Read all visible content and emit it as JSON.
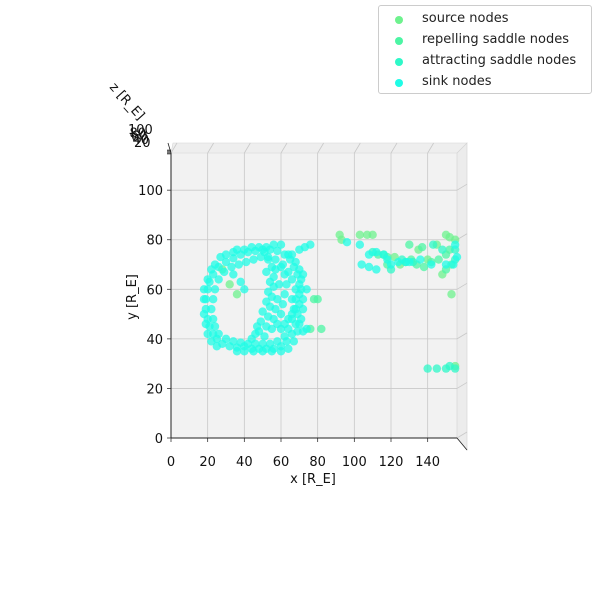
{
  "chart_data": {
    "type": "scatter",
    "projection": "3d-top-view",
    "title": "",
    "xlabel": "x [R_E]",
    "ylabel": "y [R_E]",
    "zlabel": "z [R_E]",
    "xlim": [
      0,
      156
    ],
    "ylim": [
      0,
      115
    ],
    "x_ticks": [
      "0",
      "20",
      "40",
      "60",
      "80",
      "100",
      "120",
      "140"
    ],
    "y_ticks": [
      "0",
      "20",
      "40",
      "60",
      "80",
      "100"
    ],
    "z_ticks": [
      "100",
      "80",
      "60",
      "40",
      "20"
    ],
    "grid": true,
    "legend_position": "top-right",
    "series": [
      {
        "name": "source nodes",
        "color": "#6ef28e",
        "points": [
          [
            92,
            82
          ],
          [
            93,
            80
          ],
          [
            103,
            82
          ],
          [
            107,
            82
          ],
          [
            110,
            82
          ],
          [
            150,
            82
          ],
          [
            152,
            81
          ],
          [
            155,
            80
          ],
          [
            153,
            58
          ],
          [
            122,
            73
          ],
          [
            125,
            70
          ],
          [
            135,
            76
          ],
          [
            140,
            72
          ],
          [
            145,
            78
          ],
          [
            148,
            66
          ],
          [
            28,
            68
          ],
          [
            32,
            62
          ],
          [
            36,
            58
          ],
          [
            155,
            29
          ]
        ]
      },
      {
        "name": "repelling saddle nodes",
        "color": "#4cf5a4",
        "points": [
          [
            113,
            74
          ],
          [
            116,
            74
          ],
          [
            118,
            73
          ],
          [
            128,
            71
          ],
          [
            131,
            72
          ],
          [
            134,
            70
          ],
          [
            138,
            69
          ],
          [
            142,
            71
          ],
          [
            146,
            72
          ],
          [
            150,
            74
          ],
          [
            152,
            76
          ],
          [
            130,
            78
          ],
          [
            137,
            77
          ],
          [
            150,
            68
          ],
          [
            153,
            70
          ],
          [
            118,
            70
          ],
          [
            80,
            56
          ],
          [
            76,
            44
          ],
          [
            78,
            56
          ],
          [
            82,
            44
          ]
        ]
      },
      {
        "name": "attracting saddle nodes",
        "color": "#2ef8c8",
        "points": [
          [
            120,
            68
          ],
          [
            126,
            72
          ],
          [
            132,
            71
          ],
          [
            143,
            78
          ],
          [
            148,
            76
          ],
          [
            155,
            72
          ],
          [
            155,
            76
          ],
          [
            140,
            28
          ],
          [
            145,
            28
          ],
          [
            150,
            28
          ],
          [
            155,
            28
          ],
          [
            152,
            29
          ],
          [
            110,
            75
          ]
        ]
      },
      {
        "name": "sink nodes",
        "color": "#1ffce6",
        "points": [
          [
            40,
            37
          ],
          [
            44,
            36
          ],
          [
            48,
            36
          ],
          [
            52,
            36
          ],
          [
            56,
            36
          ],
          [
            60,
            37
          ],
          [
            63,
            39
          ],
          [
            66,
            42
          ],
          [
            68,
            46
          ],
          [
            69,
            50
          ],
          [
            70,
            54
          ],
          [
            70,
            58
          ],
          [
            70,
            62
          ],
          [
            69,
            66
          ],
          [
            67,
            69
          ],
          [
            65,
            72
          ],
          [
            62,
            74
          ],
          [
            58,
            75.5
          ],
          [
            54,
            76
          ],
          [
            50,
            76
          ],
          [
            46,
            75.5
          ],
          [
            42,
            75
          ],
          [
            38,
            74
          ],
          [
            34,
            72.5
          ],
          [
            30,
            71
          ],
          [
            26,
            69
          ],
          [
            23,
            66
          ],
          [
            21,
            63
          ],
          [
            20,
            60
          ],
          [
            19,
            56
          ],
          [
            19,
            52
          ],
          [
            20,
            48
          ],
          [
            21,
            45
          ],
          [
            23,
            42
          ],
          [
            25,
            40
          ],
          [
            28,
            38
          ],
          [
            32,
            37
          ],
          [
            36,
            36.5
          ],
          [
            42,
            38
          ],
          [
            46,
            38
          ],
          [
            50,
            38
          ],
          [
            54,
            38
          ],
          [
            58,
            39
          ],
          [
            62,
            41
          ],
          [
            64,
            44
          ],
          [
            66,
            48
          ],
          [
            67,
            52
          ],
          [
            68,
            56
          ],
          [
            68,
            60
          ],
          [
            66,
            64
          ],
          [
            64,
            67
          ],
          [
            61,
            70
          ],
          [
            57,
            72
          ],
          [
            53,
            73
          ],
          [
            49,
            73
          ],
          [
            45,
            72
          ],
          [
            41,
            71
          ],
          [
            37,
            70
          ],
          [
            33,
            69
          ],
          [
            29,
            67
          ],
          [
            26,
            64
          ],
          [
            24,
            60
          ],
          [
            23,
            56
          ],
          [
            22,
            52
          ],
          [
            23,
            48
          ],
          [
            24,
            45
          ],
          [
            26,
            42
          ],
          [
            30,
            40
          ],
          [
            34,
            39
          ],
          [
            38,
            38.5
          ],
          [
            51,
            41
          ],
          [
            52,
            45
          ],
          [
            53,
            49
          ],
          [
            54,
            53
          ],
          [
            55,
            57
          ],
          [
            56,
            61
          ],
          [
            56,
            65
          ],
          [
            55,
            69
          ],
          [
            53,
            72
          ],
          [
            51,
            75
          ],
          [
            48,
            43
          ],
          [
            49,
            47
          ],
          [
            50,
            51
          ],
          [
            52,
            55
          ],
          [
            53,
            59
          ],
          [
            54,
            63
          ],
          [
            52,
            67
          ],
          [
            58,
            46
          ],
          [
            60,
            50
          ],
          [
            61,
            54
          ],
          [
            62,
            58
          ],
          [
            63,
            62
          ],
          [
            62,
            66
          ],
          [
            60,
            69
          ],
          [
            57,
            68
          ],
          [
            59,
            62
          ],
          [
            58,
            56
          ],
          [
            57,
            52
          ],
          [
            56,
            48
          ],
          [
            55,
            44
          ],
          [
            44,
            40
          ],
          [
            46,
            42
          ],
          [
            47,
            45
          ],
          [
            66,
            56
          ],
          [
            70,
            46
          ],
          [
            72,
            43
          ],
          [
            74,
            44
          ],
          [
            76,
            78
          ],
          [
            73,
            77
          ],
          [
            70,
            76
          ],
          [
            72,
            66
          ],
          [
            74,
            60
          ],
          [
            64,
            74
          ],
          [
            60,
            78
          ],
          [
            56,
            78
          ],
          [
            52,
            77
          ],
          [
            48,
            77
          ],
          [
            44,
            77
          ],
          [
            40,
            76
          ],
          [
            36,
            76
          ],
          [
            34,
            75
          ],
          [
            30,
            74
          ],
          [
            27,
            73
          ],
          [
            24,
            70
          ],
          [
            22,
            68
          ],
          [
            20,
            64
          ],
          [
            18,
            60
          ],
          [
            18,
            56
          ],
          [
            18,
            50
          ],
          [
            19,
            46
          ],
          [
            20,
            42
          ],
          [
            22,
            39
          ],
          [
            25,
            37
          ],
          [
            36,
            35
          ],
          [
            40,
            35
          ],
          [
            45,
            35
          ],
          [
            50,
            35
          ],
          [
            55,
            35
          ],
          [
            60,
            35
          ],
          [
            64,
            36
          ],
          [
            67,
            39
          ],
          [
            69,
            43
          ],
          [
            71,
            48
          ],
          [
            72,
            52
          ],
          [
            72,
            56
          ],
          [
            71,
            60
          ],
          [
            71,
            64
          ],
          [
            70,
            68
          ],
          [
            68,
            71
          ],
          [
            66,
            74
          ],
          [
            38,
            63
          ],
          [
            40,
            60
          ],
          [
            34,
            66
          ],
          [
            60,
            44
          ],
          [
            62,
            46
          ],
          [
            64,
            48
          ],
          [
            66,
            50
          ],
          [
            68,
            52
          ],
          [
            128,
            71
          ],
          [
            124,
            71
          ],
          [
            116,
            74
          ],
          [
            112,
            75
          ],
          [
            108,
            74
          ],
          [
            96,
            79
          ],
          [
            103,
            78
          ],
          [
            112,
            68
          ],
          [
            120,
            70
          ],
          [
            130,
            71
          ],
          [
            136,
            72
          ],
          [
            142,
            70
          ],
          [
            150,
            70
          ],
          [
            154,
            70
          ],
          [
            156,
            73
          ],
          [
            155,
            78
          ],
          [
            118,
            72
          ],
          [
            108,
            69
          ],
          [
            104,
            70
          ]
        ]
      }
    ]
  }
}
